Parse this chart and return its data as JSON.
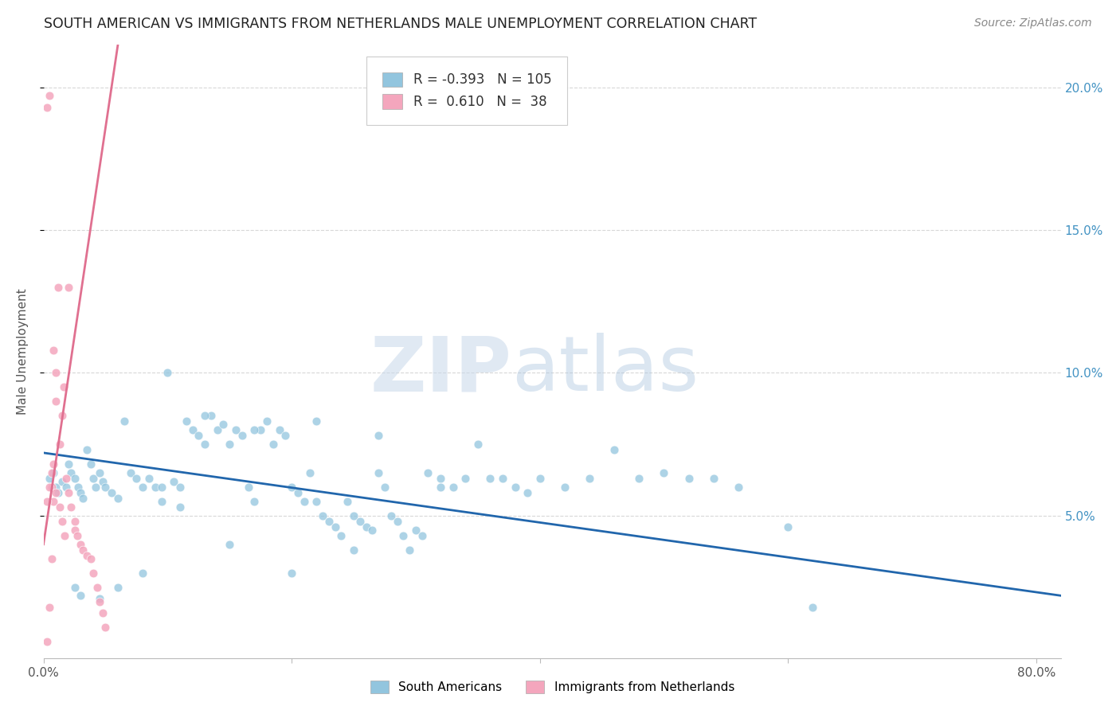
{
  "title": "SOUTH AMERICAN VS IMMIGRANTS FROM NETHERLANDS MALE UNEMPLOYMENT CORRELATION CHART",
  "source": "Source: ZipAtlas.com",
  "ylabel": "Male Unemployment",
  "xlim": [
    0.0,
    0.82
  ],
  "ylim": [
    0.0,
    0.215
  ],
  "yticks": [
    0.05,
    0.1,
    0.15,
    0.2
  ],
  "ytick_labels": [
    "5.0%",
    "10.0%",
    "15.0%",
    "20.0%"
  ],
  "xticks": [
    0.0,
    0.2,
    0.4,
    0.6,
    0.8
  ],
  "xtick_labels": [
    "0.0%",
    "",
    "",
    "",
    "80.0%"
  ],
  "legend_blue_R": "-0.393",
  "legend_blue_N": "105",
  "legend_pink_R": "0.610",
  "legend_pink_N": "38",
  "blue_color": "#92c5de",
  "pink_color": "#f4a6bd",
  "blue_line_color": "#2166ac",
  "pink_line_color": "#e07090",
  "right_tick_color": "#4393c3",
  "background_color": "#ffffff",
  "grid_color": "#d8d8d8",
  "title_color": "#222222",
  "blue_scatter_x": [
    0.005,
    0.008,
    0.01,
    0.012,
    0.015,
    0.018,
    0.02,
    0.022,
    0.025,
    0.028,
    0.03,
    0.032,
    0.035,
    0.038,
    0.04,
    0.042,
    0.045,
    0.048,
    0.05,
    0.055,
    0.06,
    0.065,
    0.07,
    0.075,
    0.08,
    0.085,
    0.09,
    0.095,
    0.1,
    0.105,
    0.11,
    0.115,
    0.12,
    0.125,
    0.13,
    0.135,
    0.14,
    0.145,
    0.15,
    0.155,
    0.16,
    0.165,
    0.17,
    0.175,
    0.18,
    0.185,
    0.19,
    0.195,
    0.2,
    0.205,
    0.21,
    0.215,
    0.22,
    0.225,
    0.23,
    0.235,
    0.24,
    0.245,
    0.25,
    0.255,
    0.26,
    0.265,
    0.27,
    0.275,
    0.28,
    0.285,
    0.29,
    0.295,
    0.3,
    0.305,
    0.31,
    0.32,
    0.33,
    0.34,
    0.35,
    0.36,
    0.37,
    0.38,
    0.39,
    0.4,
    0.42,
    0.44,
    0.46,
    0.48,
    0.5,
    0.52,
    0.54,
    0.56,
    0.6,
    0.62,
    0.025,
    0.03,
    0.045,
    0.06,
    0.08,
    0.095,
    0.11,
    0.15,
    0.2,
    0.25,
    0.13,
    0.17,
    0.22,
    0.27,
    0.32
  ],
  "blue_scatter_y": [
    0.063,
    0.065,
    0.06,
    0.058,
    0.062,
    0.06,
    0.068,
    0.065,
    0.063,
    0.06,
    0.058,
    0.056,
    0.073,
    0.068,
    0.063,
    0.06,
    0.065,
    0.062,
    0.06,
    0.058,
    0.056,
    0.083,
    0.065,
    0.063,
    0.06,
    0.063,
    0.06,
    0.06,
    0.1,
    0.062,
    0.06,
    0.083,
    0.08,
    0.078,
    0.075,
    0.085,
    0.08,
    0.082,
    0.075,
    0.08,
    0.078,
    0.06,
    0.055,
    0.08,
    0.083,
    0.075,
    0.08,
    0.078,
    0.06,
    0.058,
    0.055,
    0.065,
    0.055,
    0.05,
    0.048,
    0.046,
    0.043,
    0.055,
    0.05,
    0.048,
    0.046,
    0.045,
    0.065,
    0.06,
    0.05,
    0.048,
    0.043,
    0.038,
    0.045,
    0.043,
    0.065,
    0.063,
    0.06,
    0.063,
    0.075,
    0.063,
    0.063,
    0.06,
    0.058,
    0.063,
    0.06,
    0.063,
    0.073,
    0.063,
    0.065,
    0.063,
    0.063,
    0.06,
    0.046,
    0.018,
    0.025,
    0.022,
    0.021,
    0.025,
    0.03,
    0.055,
    0.053,
    0.04,
    0.03,
    0.038,
    0.085,
    0.08,
    0.083,
    0.078,
    0.06
  ],
  "pink_scatter_x": [
    0.003,
    0.005,
    0.007,
    0.008,
    0.01,
    0.01,
    0.012,
    0.013,
    0.015,
    0.016,
    0.018,
    0.02,
    0.02,
    0.022,
    0.025,
    0.025,
    0.027,
    0.03,
    0.032,
    0.035,
    0.038,
    0.04,
    0.043,
    0.045,
    0.048,
    0.05,
    0.003,
    0.005,
    0.007,
    0.008,
    0.01,
    0.013,
    0.015,
    0.017,
    0.003,
    0.005,
    0.007,
    0.008
  ],
  "pink_scatter_y": [
    0.193,
    0.197,
    0.06,
    0.055,
    0.09,
    0.1,
    0.13,
    0.075,
    0.085,
    0.095,
    0.063,
    0.058,
    0.13,
    0.053,
    0.048,
    0.045,
    0.043,
    0.04,
    0.038,
    0.036,
    0.035,
    0.03,
    0.025,
    0.02,
    0.016,
    0.011,
    0.055,
    0.06,
    0.065,
    0.068,
    0.058,
    0.053,
    0.048,
    0.043,
    0.006,
    0.018,
    0.035,
    0.108
  ],
  "blue_trend_x": [
    0.0,
    0.82
  ],
  "blue_trend_y": [
    0.072,
    0.022
  ],
  "pink_trend_x": [
    0.0,
    0.06
  ],
  "pink_trend_y": [
    0.04,
    0.215
  ]
}
